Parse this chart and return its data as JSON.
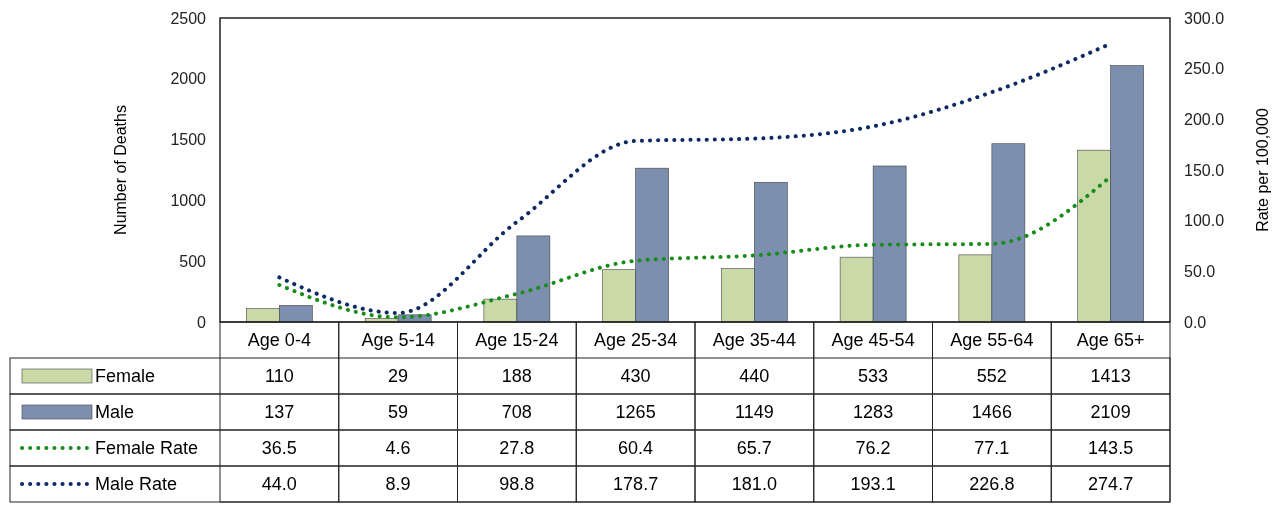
{
  "chart_data": {
    "type": "bar",
    "categories": [
      "Age 0-4",
      "Age 5-14",
      "Age 15-24",
      "Age 25-34",
      "Age 35-44",
      "Age 45-54",
      "Age 55-64",
      "Age 65+"
    ],
    "series": [
      {
        "name": "Female",
        "color": "#c9d9a8",
        "values": [
          110,
          29,
          188,
          430,
          440,
          533,
          552,
          1413
        ]
      },
      {
        "name": "Male",
        "color": "#7d8fae",
        "values": [
          137,
          59,
          708,
          1265,
          1149,
          1283,
          1466,
          2109
        ]
      },
      {
        "name": "Female Rate",
        "type": "line",
        "axis": "y2",
        "color": "#1a8c1a",
        "line_style": "dotted",
        "values": [
          36.5,
          4.6,
          27.8,
          60.4,
          65.7,
          76.2,
          77.1,
          143.5
        ],
        "value_labels": [
          "36.5",
          "4.6",
          "27.8",
          "60.4",
          "65.7",
          "76.2",
          "77.1",
          "143.5"
        ]
      },
      {
        "name": "Male Rate",
        "type": "line",
        "axis": "y2",
        "color": "#0d2a62",
        "line_style": "dotted",
        "values": [
          44.0,
          8.9,
          98.8,
          178.7,
          181.0,
          193.1,
          226.8,
          274.7
        ],
        "value_labels": [
          "44.0",
          "8.9",
          "98.8",
          "178.7",
          "181.0",
          "193.1",
          "226.8",
          "274.7"
        ]
      }
    ],
    "ylabel": "Number of Deaths",
    "y2label": "Rate per 100,000",
    "ylim": [
      0,
      2500
    ],
    "yticks": [
      0,
      500,
      1000,
      1500,
      2000,
      2500
    ],
    "y2lim": [
      0,
      300
    ],
    "y2ticks": [
      {
        "value": 0,
        "label": "0.0"
      },
      {
        "value": 50,
        "label": "50.0"
      },
      {
        "value": 100,
        "label": "100.0"
      },
      {
        "value": 150,
        "label": "150.0"
      },
      {
        "value": 200,
        "label": "200.0"
      },
      {
        "value": 250,
        "label": "250.0"
      },
      {
        "value": 300,
        "label": "300.0"
      }
    ],
    "data_labels": true,
    "legend": "bottom left"
  }
}
